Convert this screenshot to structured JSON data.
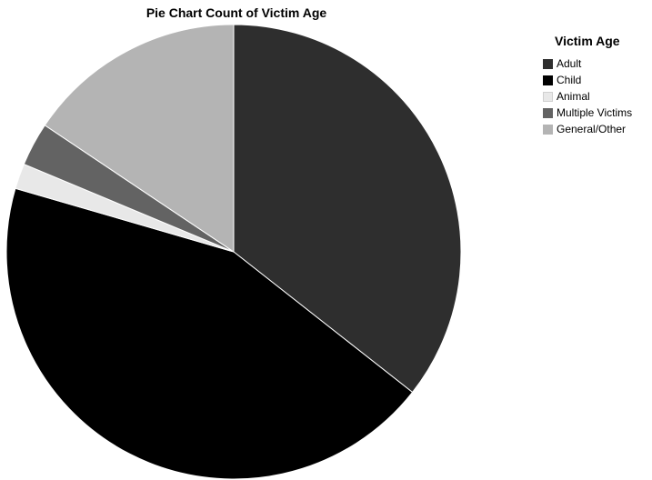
{
  "chart_data": {
    "type": "pie",
    "title": "Pie Chart Count of Victim Age",
    "legend_title": "Victim Age",
    "legend_position": "top-right",
    "start_angle_deg": 0,
    "direction": "clockwise",
    "slices": [
      {
        "label": "Adult",
        "value": 35.6,
        "color": "#2e2e2e"
      },
      {
        "label": "Child",
        "value": 43.9,
        "color": "#000000"
      },
      {
        "label": "Animal",
        "value": 1.8,
        "color": "#e8e8e8"
      },
      {
        "label": "Multiple Victims",
        "value": 3.1,
        "color": "#636363"
      },
      {
        "label": "General/Other",
        "value": 15.6,
        "color": "#b4b4b4"
      }
    ]
  }
}
